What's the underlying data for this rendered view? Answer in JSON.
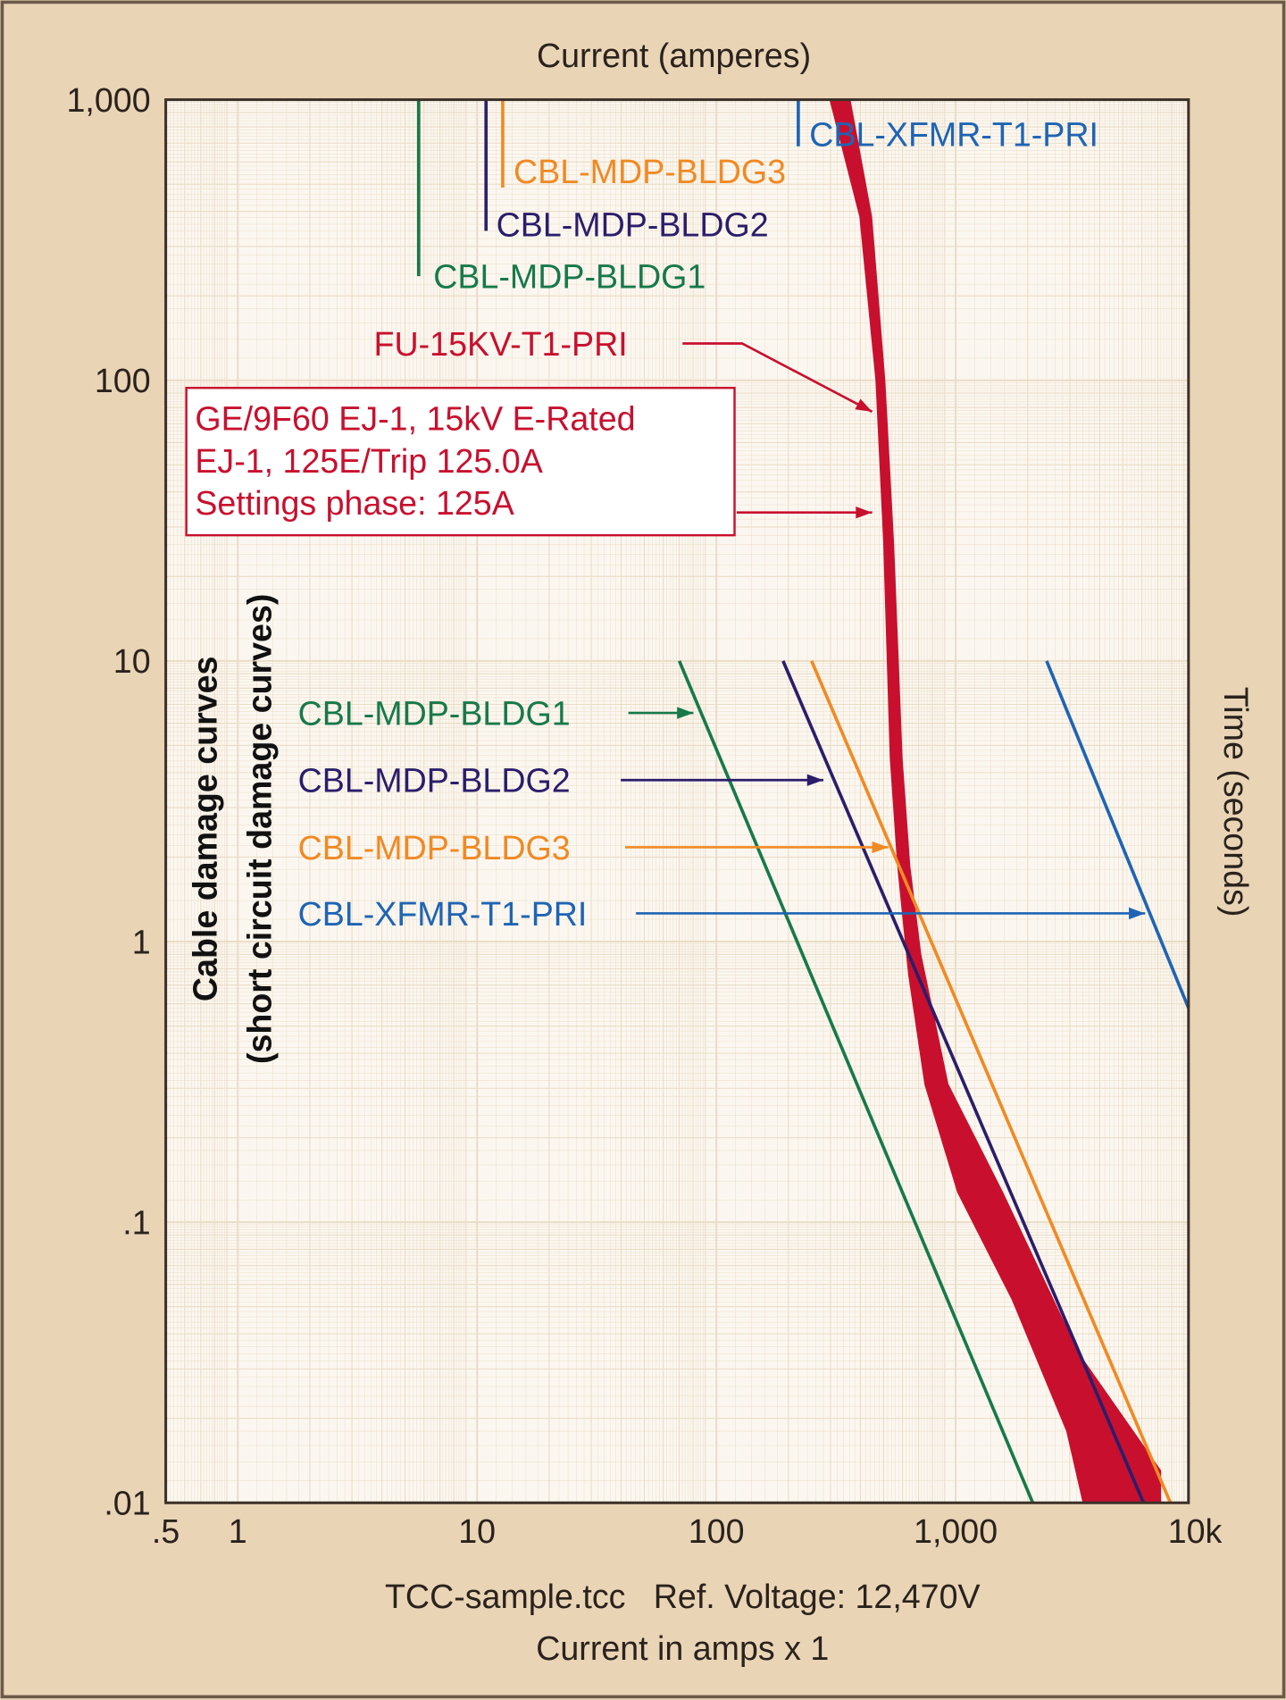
{
  "chart_data": {
    "type": "line",
    "title": "",
    "top_axis_label": "Current (amperes)",
    "left_axis_label_line1": "Cable damage curves",
    "left_axis_label_line2": "(short circuit damage curves)",
    "right_axis_label": "Time (seconds)",
    "footer_line1": "TCC-sample.tcc   Ref. Voltage: 12,470V",
    "footer_line2": "Current in amps x 1",
    "x_scale": "log",
    "y_scale": "log",
    "xlim": [
      0.5,
      9400
    ],
    "ylim": [
      0.01,
      1000
    ],
    "grid": true,
    "x_ticks": [
      {
        "value": 0.5,
        "label": ".5"
      },
      {
        "value": 1,
        "label": "1"
      },
      {
        "value": 10,
        "label": "10"
      },
      {
        "value": 100,
        "label": "100"
      },
      {
        "value": 1000,
        "label": "1,000"
      },
      {
        "value": 10000,
        "label": "10k"
      }
    ],
    "y_ticks": [
      {
        "value": 1000,
        "label": "1,000"
      },
      {
        "value": 100,
        "label": "100"
      },
      {
        "value": 10,
        "label": "10"
      },
      {
        "value": 1,
        "label": "1"
      },
      {
        "value": 0.1,
        "label": ".1"
      },
      {
        "value": 0.01,
        "label": ".01"
      }
    ],
    "colors": {
      "fuse": "#c8102e",
      "bldg1": "#17794a",
      "bldg2": "#2b1d6b",
      "bldg3": "#f08a24",
      "xfmr": "#1f64b4",
      "background": "#e9d4b6",
      "plot": "#fbf7f0",
      "grid": "#eadcc6"
    },
    "fuse": {
      "name": "FU-15KV-T1-PRI",
      "description_lines": [
        "GE/9F60 EJ-1, 15kV E-Rated",
        "EJ-1, 125E/Trip 125.0A",
        "Settings phase: 125A"
      ],
      "min_melt": [
        [
          300,
          1000
        ],
        [
          400,
          383
        ],
        [
          467,
          100
        ],
        [
          503,
          26.6
        ],
        [
          536,
          4.5
        ],
        [
          576,
          1.85
        ],
        [
          640,
          0.76
        ],
        [
          748,
          0.31
        ],
        [
          1025,
          0.128
        ],
        [
          1733,
          0.053
        ],
        [
          2930,
          0.018
        ],
        [
          3430,
          0.01
        ]
      ],
      "total_clear": [
        [
          360,
          1000
        ],
        [
          443,
          383
        ],
        [
          503,
          100
        ],
        [
          547,
          26.6
        ],
        [
          594,
          4.5
        ],
        [
          640,
          1.85
        ],
        [
          711,
          0.9
        ],
        [
          924,
          0.31
        ],
        [
          1560,
          0.128
        ],
        [
          3250,
          0.034
        ],
        [
          7150,
          0.013
        ],
        [
          7150,
          0.01
        ]
      ]
    },
    "series": [
      {
        "name": "CBL-MDP-BLDG1",
        "color_key": "bldg1",
        "vertical": {
          "x": 5.7,
          "y_from": 1000,
          "y_to": 235
        },
        "damage": [
          [
            70,
            10
          ],
          [
            2100,
            0.01
          ]
        ]
      },
      {
        "name": "CBL-MDP-BLDG2",
        "color_key": "bldg2",
        "vertical": {
          "x": 10.9,
          "y_from": 1000,
          "y_to": 341
        },
        "damage": [
          [
            190,
            10
          ],
          [
            6100,
            0.01
          ]
        ]
      },
      {
        "name": "CBL-MDP-BLDG3",
        "color_key": "bldg3",
        "vertical": {
          "x": 12.8,
          "y_from": 1000,
          "y_to": 486
        },
        "damage": [
          [
            250,
            10
          ],
          [
            7900,
            0.01
          ]
        ]
      },
      {
        "name": "CBL-XFMR-T1-PRI",
        "color_key": "xfmr",
        "vertical": {
          "x": 220,
          "y_from": 1000,
          "y_to": 682
        },
        "damage": [
          [
            2400,
            10
          ],
          [
            9400,
            0.58
          ]
        ]
      }
    ]
  }
}
